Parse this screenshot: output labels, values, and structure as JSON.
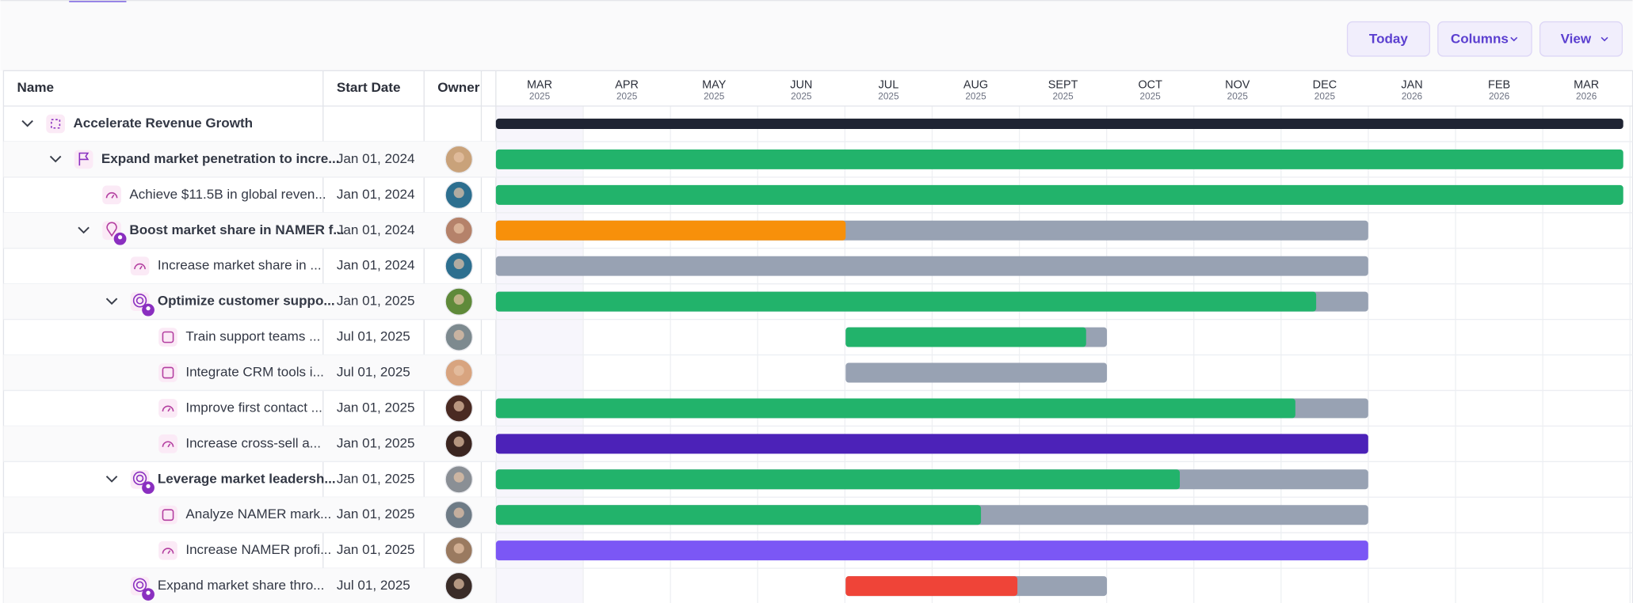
{
  "toolbar": {
    "buttons": [
      "Today",
      "Columns",
      "View"
    ]
  },
  "table": {
    "columns": [
      "Name",
      "Start Date",
      "Owner"
    ],
    "rows": [
      {
        "name": "Accelerate Revenue Growth"
      },
      {
        "name": "Expand market penetration to incre...",
        "start_date": "Jan 01, 2024"
      },
      {
        "name": "Achieve $11.5B in global reven...",
        "start_date": "Jan 01, 2024"
      },
      {
        "name": "Boost market share in NAMER f...",
        "start_date": "Jan 01, 2024"
      },
      {
        "name": "Increase market share in ...",
        "start_date": "Jan 01, 2024"
      },
      {
        "name": "Optimize customer suppo...",
        "start_date": "Jan 01, 2025"
      },
      {
        "name": "Train support teams ...",
        "start_date": "Jul 01, 2025"
      },
      {
        "name": "Integrate CRM tools i...",
        "start_date": "Jul 01, 2025"
      },
      {
        "name": "Improve first contact ...",
        "start_date": "Jan 01, 2025"
      },
      {
        "name": "Increase cross-sell a...",
        "start_date": "Jan 01, 2025"
      },
      {
        "name": "Leverage market leadersh...",
        "start_date": "Jan 01, 2025"
      },
      {
        "name": "Analyze NAMER mark...",
        "start_date": "Jan 01, 2025"
      },
      {
        "name": "Increase NAMER profi...",
        "start_date": "Jan 01, 2025"
      },
      {
        "name": "Expand market share thro...",
        "start_date": "Jul 01, 2025"
      }
    ]
  },
  "timeline": {
    "months": [
      {
        "month": "MAR",
        "year": "2025"
      },
      {
        "month": "APR",
        "year": "2025"
      },
      {
        "month": "MAY",
        "year": "2025"
      },
      {
        "month": "JUN",
        "year": "2025"
      },
      {
        "month": "JUL",
        "year": "2025"
      },
      {
        "month": "AUG",
        "year": "2025"
      },
      {
        "month": "SEPT",
        "year": "2025"
      },
      {
        "month": "OCT",
        "year": "2025"
      },
      {
        "month": "NOV",
        "year": "2025"
      },
      {
        "month": "DEC",
        "year": "2025"
      },
      {
        "month": "JAN",
        "year": "2026"
      },
      {
        "month": "FEB",
        "year": "2026"
      },
      {
        "month": "MAR",
        "year": "2026"
      }
    ]
  }
}
